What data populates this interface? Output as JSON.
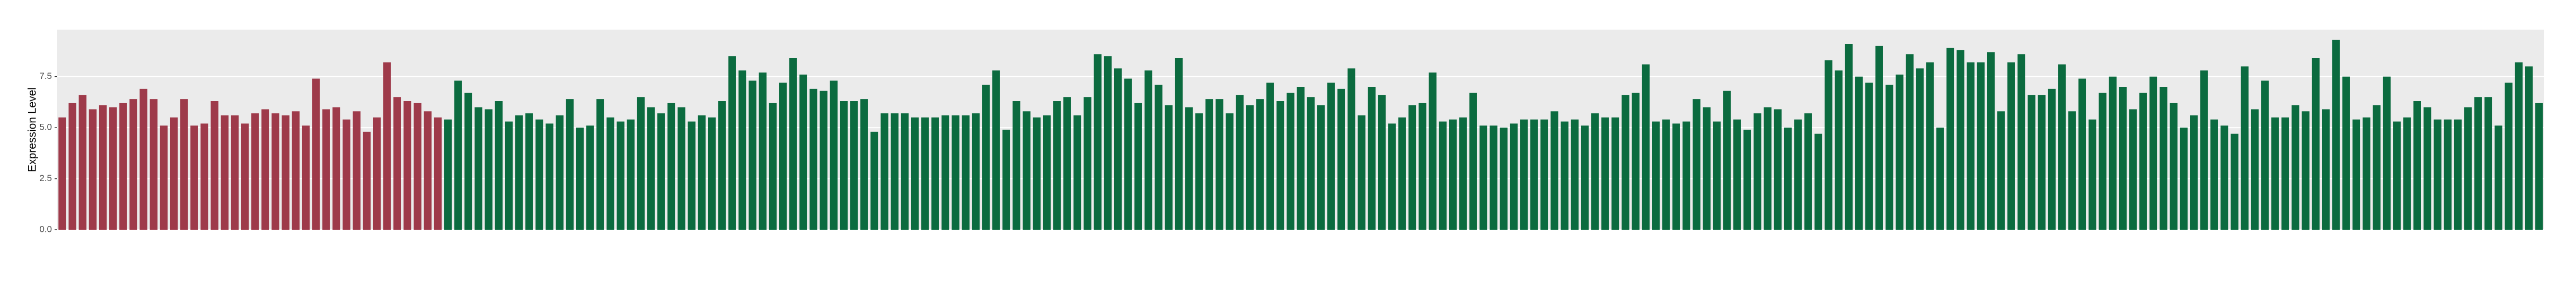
{
  "chart_data": {
    "type": "bar",
    "y_label": "Expression Level",
    "ylim": [
      0,
      9.8
    ],
    "yticks": [
      {
        "value": 0,
        "label": "0.0"
      },
      2.5,
      {
        "value": 5,
        "label": "5.0"
      },
      7.5
    ],
    "grid": true,
    "series": [
      {
        "color": "#9e3a4a",
        "values": [
          5.5,
          6.2,
          6.6,
          5.9,
          6.1,
          6.0,
          6.2,
          6.4,
          6.9,
          6.4,
          5.1,
          5.5,
          6.4,
          5.1,
          5.2,
          6.3,
          5.6,
          5.6,
          5.2,
          5.7,
          5.9,
          5.7,
          5.6,
          5.8,
          5.1,
          7.4,
          5.9,
          6.0,
          5.4,
          5.8,
          4.8,
          5.5,
          8.2,
          6.5,
          6.3,
          6.2,
          5.8,
          5.5
        ]
      },
      {
        "color": "#0b6b3f",
        "values": [
          5.4,
          7.3,
          6.7,
          6.0,
          5.9,
          6.3,
          5.3,
          5.6,
          5.7,
          5.4,
          5.2,
          5.6,
          6.4,
          5.0,
          5.1,
          6.4,
          5.5,
          5.3,
          5.4,
          6.5,
          6.0,
          5.7,
          6.2,
          6.0,
          5.3,
          5.6,
          5.5,
          6.3,
          8.5,
          7.8,
          7.3,
          7.7,
          6.2,
          7.2,
          8.4,
          7.6,
          6.9,
          6.8,
          7.3,
          6.3,
          6.3,
          6.4,
          4.8,
          5.7,
          5.7,
          5.7,
          5.5,
          5.5,
          5.5,
          5.6,
          5.6,
          5.6,
          5.7,
          7.1,
          7.8,
          4.9,
          6.3,
          5.8,
          5.5,
          5.6,
          6.3,
          6.5,
          5.6,
          6.5,
          8.6,
          8.5,
          7.9,
          7.4,
          6.2,
          7.8,
          7.1,
          6.1,
          8.4,
          6.0,
          5.7,
          6.4,
          6.4,
          5.7,
          6.6,
          6.1,
          6.4,
          7.2,
          6.3,
          6.7,
          7.0,
          6.5,
          6.1,
          7.2,
          6.9,
          7.9,
          5.6,
          7.0,
          6.6,
          5.2,
          5.5,
          6.1,
          6.2,
          7.7,
          5.3,
          5.4,
          5.5,
          6.7,
          5.1,
          5.1,
          5.0,
          5.2,
          5.4,
          5.4,
          5.4,
          5.8,
          5.3,
          5.4,
          5.1,
          5.7,
          5.5,
          5.5,
          6.6,
          6.7,
          8.1,
          5.3,
          5.4,
          5.2,
          5.3,
          6.4,
          6.0,
          5.3,
          6.8,
          5.4,
          4.9,
          5.7,
          6.0,
          5.9,
          5.0,
          5.4,
          5.7,
          4.7,
          8.3,
          7.8,
          9.1,
          7.5,
          7.2,
          9.0,
          7.1,
          7.6,
          8.6,
          7.9,
          8.2,
          5.0,
          8.9,
          8.8,
          8.2,
          8.2,
          8.7,
          5.8,
          8.2,
          8.6,
          6.6,
          6.6,
          6.9,
          8.1,
          5.8,
          7.4,
          5.4,
          6.7,
          7.5,
          7.0,
          5.9,
          6.7,
          7.5,
          7.0,
          6.2,
          5.0,
          5.6,
          7.8,
          5.4,
          5.1,
          4.7,
          8.0,
          5.9,
          7.3,
          5.5,
          5.5,
          6.1,
          5.8,
          8.4,
          5.9,
          9.3,
          7.5,
          5.4,
          5.5,
          6.1,
          7.5,
          5.3,
          5.5,
          6.3,
          6.0,
          5.4,
          5.4,
          5.4,
          6.0,
          6.5,
          6.5,
          5.1,
          7.2,
          8.2,
          8.0,
          6.2
        ]
      }
    ]
  }
}
